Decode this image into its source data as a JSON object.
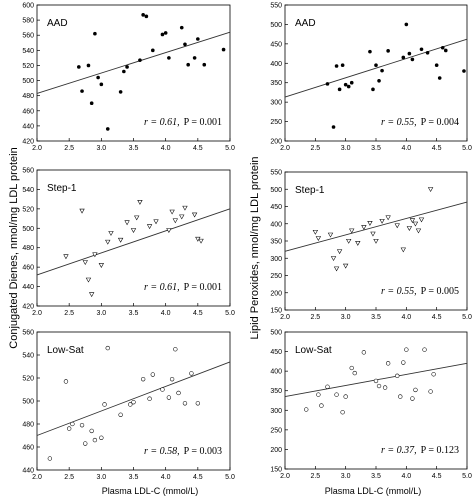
{
  "figure": {
    "left_ylabel": "Conjugated Dienes, nmol/mg LDL protein",
    "right_ylabel": "Lipid Peroxides, nmol/mg LDL protein",
    "xlabel": "Plasma LDL-C (mmol/L)"
  },
  "chart_data": [
    {
      "type": "scatter",
      "column": "left",
      "label": "AAD",
      "marker": "filled-circle",
      "stat_r": "r = 0.61,",
      "stat_p": "P = 0.001",
      "xlim": [
        2.0,
        5.0
      ],
      "ylim": [
        420,
        600
      ],
      "xticks": [
        "2.0",
        "2.5",
        "3.0",
        "3.5",
        "4.0",
        "4.5",
        "5.0"
      ],
      "yticks": [
        "420",
        "440",
        "460",
        "480",
        "500",
        "520",
        "540",
        "560",
        "580",
        "600"
      ],
      "trendline": [
        [
          2.0,
          483
        ],
        [
          5.0,
          564
        ]
      ],
      "x": [
        2.65,
        2.7,
        2.8,
        2.85,
        2.9,
        2.95,
        3.0,
        3.1,
        3.3,
        3.35,
        3.4,
        3.6,
        3.65,
        3.7,
        3.8,
        3.95,
        4.0,
        4.05,
        4.25,
        4.3,
        4.35,
        4.45,
        4.5,
        4.6,
        4.9
      ],
      "y": [
        518,
        486,
        520,
        470,
        562,
        504,
        495,
        436,
        485,
        512,
        518,
        527,
        587,
        585,
        540,
        561,
        563,
        530,
        570,
        548,
        521,
        530,
        555,
        521,
        541
      ]
    },
    {
      "type": "scatter",
      "column": "right",
      "label": "AAD",
      "marker": "filled-circle",
      "stat_r": "r = 0.55,",
      "stat_p": "P = 0.004",
      "xlim": [
        2.0,
        5.0
      ],
      "ylim": [
        200,
        550
      ],
      "xticks": [
        "2.0",
        "2.5",
        "3.0",
        "3.5",
        "4.0",
        "4.5",
        "5.0"
      ],
      "yticks": [
        "200",
        "250",
        "300",
        "350",
        "400",
        "450",
        "500",
        "550"
      ],
      "trendline": [
        [
          2.0,
          313
        ],
        [
          5.0,
          462
        ]
      ],
      "x": [
        2.7,
        2.8,
        2.85,
        2.9,
        2.95,
        3.0,
        3.05,
        3.1,
        3.4,
        3.45,
        3.5,
        3.55,
        3.6,
        3.7,
        3.95,
        4.0,
        4.05,
        4.1,
        4.25,
        4.35,
        4.5,
        4.55,
        4.6,
        4.65,
        4.95
      ],
      "y": [
        347,
        236,
        393,
        333,
        395,
        345,
        340,
        350,
        430,
        333,
        395,
        355,
        381,
        432,
        415,
        500,
        425,
        410,
        436,
        427,
        395,
        362,
        440,
        433,
        380
      ]
    },
    {
      "type": "scatter",
      "column": "left",
      "label": "Step-1",
      "marker": "open-triangle-down",
      "stat_r": "r = 0.61,",
      "stat_p": "P = 0.001",
      "xlim": [
        2.0,
        5.0
      ],
      "ylim": [
        420,
        560
      ],
      "xticks": [
        "2.0",
        "2.5",
        "3.0",
        "3.5",
        "4.0",
        "4.5",
        "5.0"
      ],
      "yticks": [
        "420",
        "440",
        "460",
        "480",
        "500",
        "520",
        "540",
        "560"
      ],
      "trendline": [
        [
          2.0,
          452
        ],
        [
          5.0,
          520
        ]
      ],
      "x": [
        2.45,
        2.7,
        2.75,
        2.8,
        2.85,
        2.9,
        3.0,
        3.1,
        3.15,
        3.3,
        3.4,
        3.5,
        3.55,
        3.6,
        3.75,
        3.85,
        4.05,
        4.1,
        4.15,
        4.25,
        4.3,
        4.45,
        4.5,
        4.55
      ],
      "y": [
        471,
        518,
        465,
        447,
        432,
        473,
        462,
        486,
        495,
        488,
        506,
        498,
        511,
        527,
        502,
        507,
        498,
        517,
        508,
        512,
        521,
        514,
        489,
        487
      ]
    },
    {
      "type": "scatter",
      "column": "right",
      "label": "Step-1",
      "marker": "open-triangle-down",
      "stat_r": "r = 0.55,",
      "stat_p": "P = 0.005",
      "xlim": [
        2.0,
        5.0
      ],
      "ylim": [
        150,
        550
      ],
      "xticks": [
        "2.0",
        "2.5",
        "3.0",
        "3.5",
        "4.0",
        "4.5",
        "5.0"
      ],
      "yticks": [
        "150",
        "200",
        "250",
        "300",
        "350",
        "400",
        "450",
        "500",
        "550"
      ],
      "trendline": [
        [
          2.0,
          320
        ],
        [
          5.0,
          463
        ]
      ],
      "x": [
        2.5,
        2.55,
        2.75,
        2.8,
        2.85,
        2.9,
        3.0,
        3.05,
        3.1,
        3.2,
        3.3,
        3.4,
        3.45,
        3.5,
        3.6,
        3.7,
        3.85,
        3.95,
        4.05,
        4.1,
        4.15,
        4.2,
        4.25,
        4.4
      ],
      "y": [
        376,
        358,
        368,
        300,
        270,
        320,
        278,
        350,
        380,
        344,
        390,
        402,
        371,
        350,
        408,
        418,
        395,
        325,
        387,
        410,
        400,
        380,
        412,
        500
      ]
    },
    {
      "type": "scatter",
      "column": "left",
      "label": "Low-Sat",
      "marker": "open-circle",
      "stat_r": "r = 0.58,",
      "stat_p": "P = 0.003",
      "xlim": [
        2.0,
        5.0
      ],
      "ylim": [
        440,
        560
      ],
      "xticks": [
        "2.0",
        "2.5",
        "3.0",
        "3.5",
        "4.0",
        "4.5",
        "5.0"
      ],
      "yticks": [
        "440",
        "460",
        "480",
        "500",
        "520",
        "540",
        "560"
      ],
      "trendline": [
        [
          2.0,
          470
        ],
        [
          5.0,
          534
        ]
      ],
      "x": [
        2.2,
        2.45,
        2.5,
        2.55,
        2.7,
        2.75,
        2.85,
        2.9,
        3.0,
        3.05,
        3.1,
        3.3,
        3.45,
        3.5,
        3.65,
        3.75,
        3.8,
        3.95,
        4.05,
        4.1,
        4.15,
        4.2,
        4.3,
        4.4,
        4.5
      ],
      "y": [
        450,
        517,
        476,
        480,
        479,
        463,
        474,
        466,
        468,
        497,
        546,
        488,
        497,
        499,
        519,
        502,
        523,
        510,
        503,
        519,
        545,
        507,
        498,
        524,
        498
      ]
    },
    {
      "type": "scatter",
      "column": "right",
      "label": "Low-Sat",
      "marker": "open-circle",
      "stat_r": "r = 0.37,",
      "stat_p": "P = 0.123",
      "xlim": [
        2.0,
        5.0
      ],
      "ylim": [
        150,
        500
      ],
      "xticks": [
        "2.0",
        "2.5",
        "3.0",
        "3.5",
        "4.0",
        "4.5",
        "5.0"
      ],
      "yticks": [
        "150",
        "200",
        "250",
        "300",
        "350",
        "400",
        "450",
        "500"
      ],
      "trendline": [
        [
          2.0,
          335
        ],
        [
          5.0,
          420
        ]
      ],
      "x": [
        2.35,
        2.55,
        2.6,
        2.7,
        2.85,
        2.95,
        3.0,
        3.1,
        3.15,
        3.3,
        3.5,
        3.55,
        3.65,
        3.7,
        3.85,
        3.9,
        3.95,
        4.0,
        4.1,
        4.15,
        4.3,
        4.4,
        4.45
      ],
      "y": [
        302,
        340,
        312,
        360,
        340,
        295,
        335,
        408,
        395,
        448,
        375,
        362,
        358,
        420,
        388,
        335,
        422,
        455,
        330,
        352,
        455,
        348,
        392
      ]
    }
  ]
}
